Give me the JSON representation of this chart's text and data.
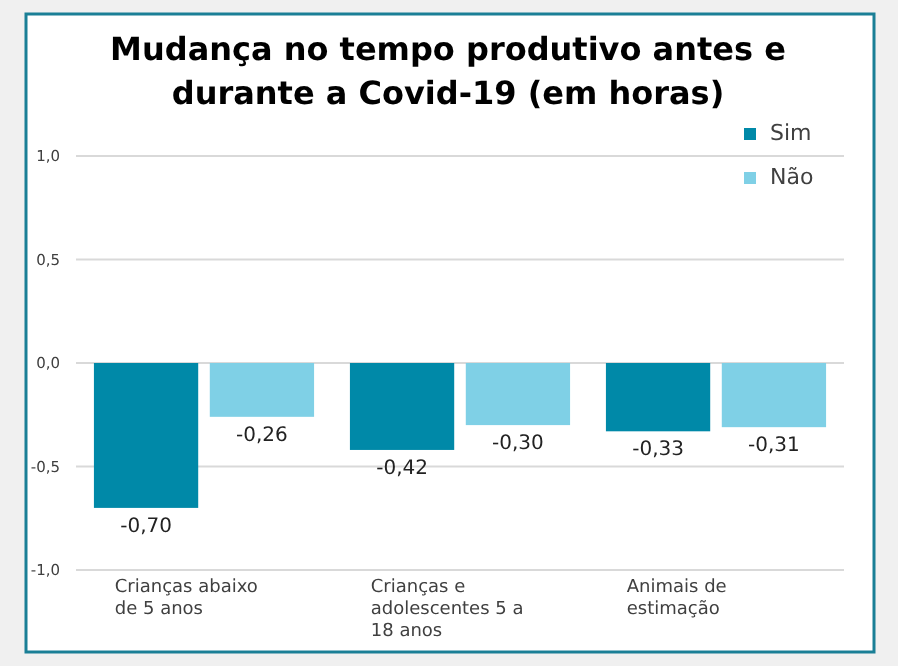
{
  "chart_data": {
    "type": "bar",
    "title": "Mudança no tempo produtivo antes e durante a Covid-19 (em horas)",
    "categories": [
      "Crianças abaixo de 5 anos",
      "Crianças e adolescentes 5 a 18 anos",
      "Animais de estimação"
    ],
    "series": [
      {
        "name": "Sim",
        "color": "#0089a8",
        "values": [
          -0.7,
          -0.42,
          -0.33
        ],
        "value_labels": [
          "-0,70",
          "-0,42",
          "-0,33"
        ]
      },
      {
        "name": "Não",
        "color": "#7fd0e6",
        "values": [
          -0.26,
          -0.3,
          -0.31
        ],
        "value_labels": [
          "-0,26",
          "-0,30",
          "-0,31"
        ]
      }
    ],
    "ylim": [
      -1,
      1
    ],
    "yticks": [
      {
        "value": -1,
        "label": "-1,0"
      },
      {
        "value": -0.5,
        "label": "-0,5"
      },
      {
        "value": 0,
        "label": "0,0"
      },
      {
        "value": 0.5,
        "label": "0,5"
      },
      {
        "value": 1,
        "label": "1,0"
      }
    ],
    "grid": "y",
    "legend": "top right"
  }
}
